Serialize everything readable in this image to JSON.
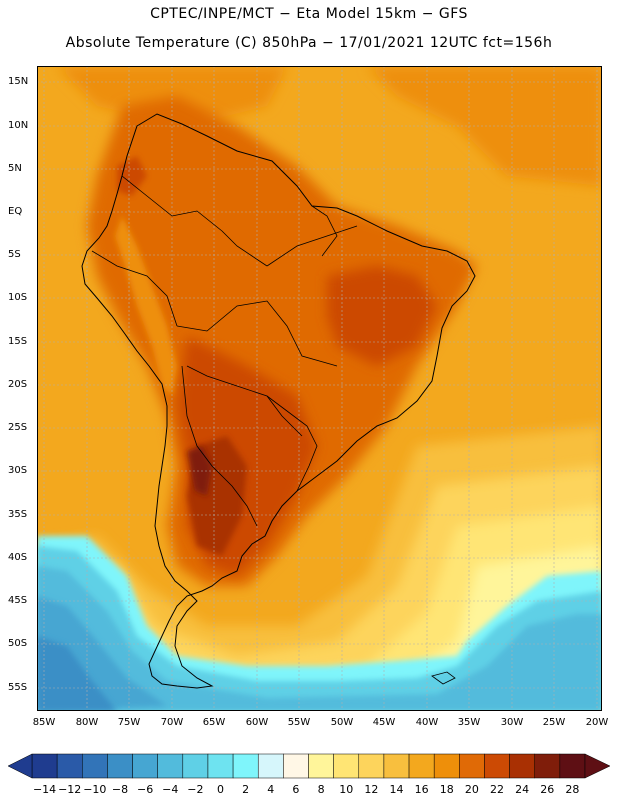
{
  "title": {
    "line1": "CPTEC/INPE/MCT −  Eta Model 15km − GFS",
    "line2": "Absolute Temperature (C) 850hPa − 17/01/2021 12UTC fct=156h"
  },
  "map": {
    "lat_labels": [
      "15N",
      "10N",
      "5N",
      "EQ",
      "5S",
      "10S",
      "15S",
      "20S",
      "25S",
      "30S",
      "35S",
      "40S",
      "45S",
      "50S",
      "55S"
    ],
    "lon_labels": [
      "85W",
      "80W",
      "75W",
      "70W",
      "65W",
      "60W",
      "55W",
      "50W",
      "45W",
      "40W",
      "35W",
      "30W",
      "25W",
      "20W"
    ]
  },
  "colorbar": {
    "labels": [
      "−14",
      "−12",
      "−10",
      "−8",
      "−6",
      "−4",
      "−2",
      "0",
      "2",
      "4",
      "6",
      "8",
      "10",
      "12",
      "14",
      "16",
      "18",
      "20",
      "22",
      "24",
      "26",
      "28"
    ],
    "colors": [
      "#1f3c8f",
      "#2a5aa8",
      "#3274b8",
      "#3b8fc6",
      "#46a6d2",
      "#52bbdc",
      "#5fd0e6",
      "#6ee3f0",
      "#7ff5fb",
      "#d6f6fb",
      "#fff7e6",
      "#fff59a",
      "#ffe574",
      "#fdd45c",
      "#f8bf3e",
      "#f3a81e",
      "#ee8f0a",
      "#e06a06",
      "#cc4a04",
      "#a93003",
      "#7f1d0a",
      "#5e0f14"
    ]
  }
}
